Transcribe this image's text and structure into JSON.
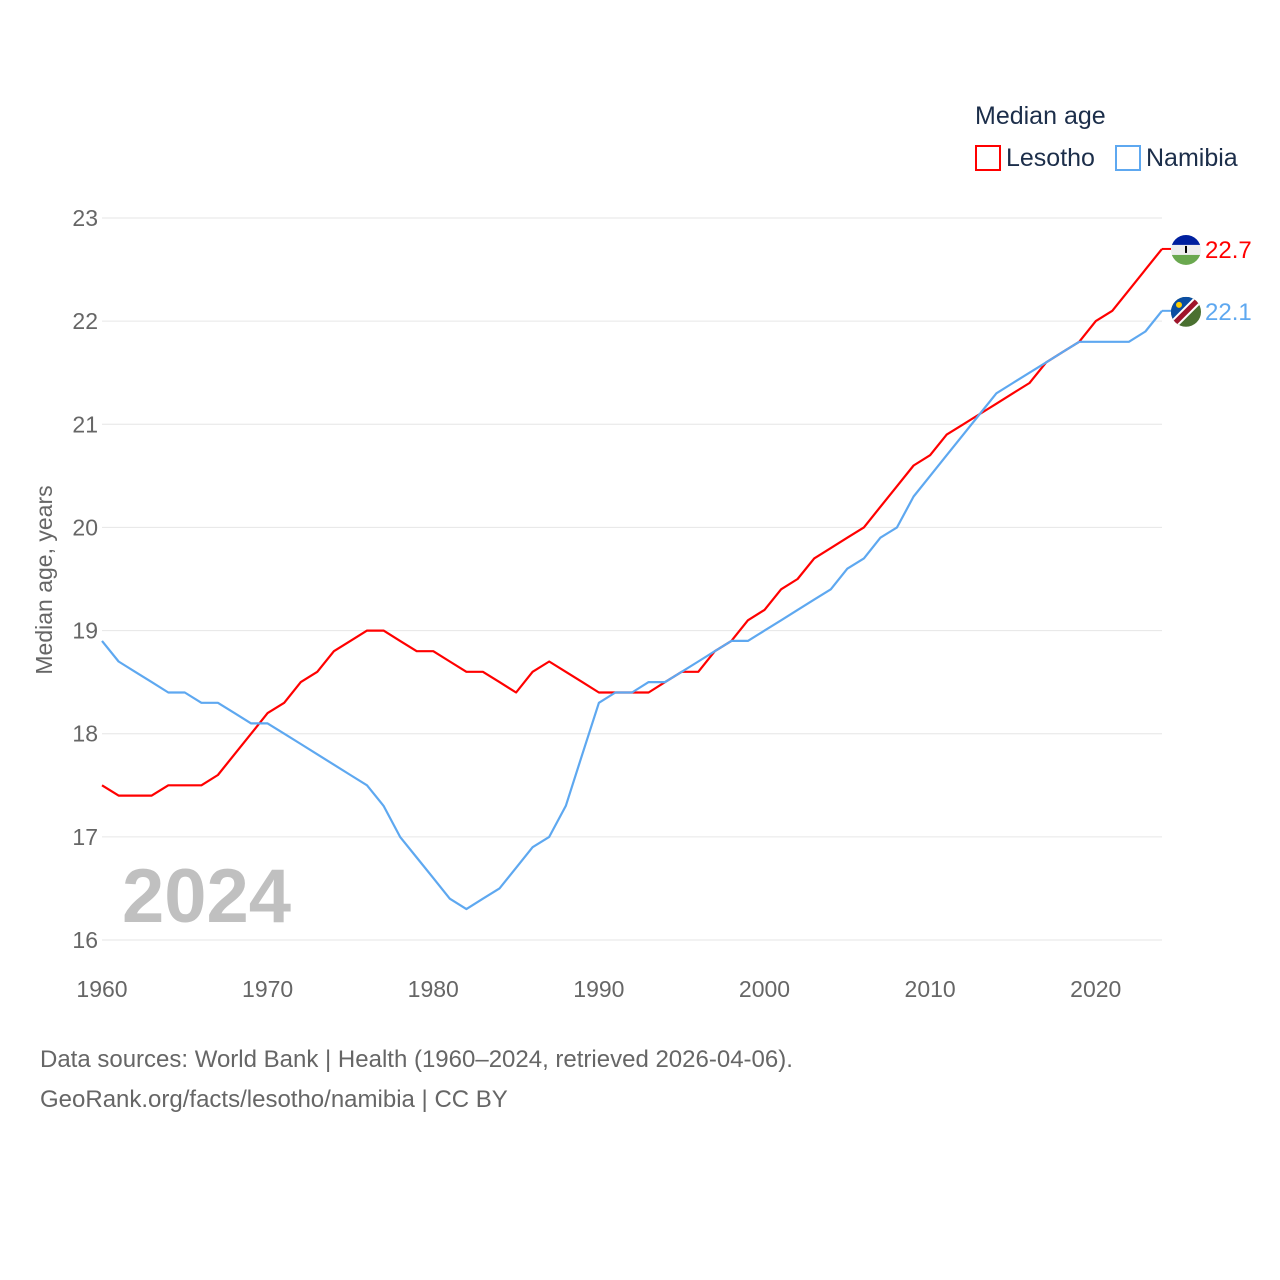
{
  "chart_data": {
    "type": "line",
    "title": "",
    "legend_title": "Median age",
    "legend_position": "top-right",
    "xlabel": "",
    "ylabel": "Median age, years",
    "xlim": [
      1960,
      2024
    ],
    "ylim": [
      16,
      23
    ],
    "grid": true,
    "x_ticks": [
      "1960",
      "1970",
      "1980",
      "1990",
      "2000",
      "2010",
      "2020"
    ],
    "y_ticks": [
      "16",
      "17",
      "18",
      "19",
      "20",
      "21",
      "22",
      "23"
    ],
    "year_watermark": "2024",
    "x_start": 1960,
    "series": [
      {
        "name": "Lesotho",
        "color": "#ff0000",
        "end_label": "22.7",
        "values": [
          17.5,
          17.4,
          17.4,
          17.4,
          17.5,
          17.5,
          17.5,
          17.6,
          17.8,
          18.0,
          18.2,
          18.3,
          18.5,
          18.6,
          18.8,
          18.9,
          19.0,
          19.0,
          18.9,
          18.8,
          18.8,
          18.7,
          18.6,
          18.6,
          18.5,
          18.4,
          18.6,
          18.7,
          18.6,
          18.5,
          18.4,
          18.4,
          18.4,
          18.4,
          18.5,
          18.6,
          18.6,
          18.8,
          18.9,
          19.1,
          19.2,
          19.4,
          19.5,
          19.7,
          19.8,
          19.9,
          20.0,
          20.2,
          20.4,
          20.6,
          20.7,
          20.9,
          21.0,
          21.1,
          21.2,
          21.3,
          21.4,
          21.6,
          21.7,
          21.8,
          22.0,
          22.1,
          22.3,
          22.5,
          22.7
        ]
      },
      {
        "name": "Namibia",
        "color": "#5ea8f0",
        "end_label": "22.1",
        "values": [
          18.9,
          18.7,
          18.6,
          18.5,
          18.4,
          18.4,
          18.3,
          18.3,
          18.2,
          18.1,
          18.1,
          18.0,
          17.9,
          17.8,
          17.7,
          17.6,
          17.5,
          17.3,
          17.0,
          16.8,
          16.6,
          16.4,
          16.3,
          16.4,
          16.5,
          16.7,
          16.9,
          17.0,
          17.3,
          17.8,
          18.3,
          18.4,
          18.4,
          18.5,
          18.5,
          18.6,
          18.7,
          18.8,
          18.9,
          18.9,
          19.0,
          19.1,
          19.2,
          19.3,
          19.4,
          19.6,
          19.7,
          19.9,
          20.0,
          20.3,
          20.5,
          20.7,
          20.9,
          21.1,
          21.3,
          21.4,
          21.5,
          21.6,
          21.7,
          21.8,
          21.8,
          21.8,
          21.8,
          21.9,
          22.1
        ]
      }
    ]
  },
  "footer": {
    "line1": "Data sources: World Bank | Health (1960–2024, retrieved 2026-04-06).",
    "line2": "GeoRank.org/facts/lesotho/namibia | CC BY"
  }
}
